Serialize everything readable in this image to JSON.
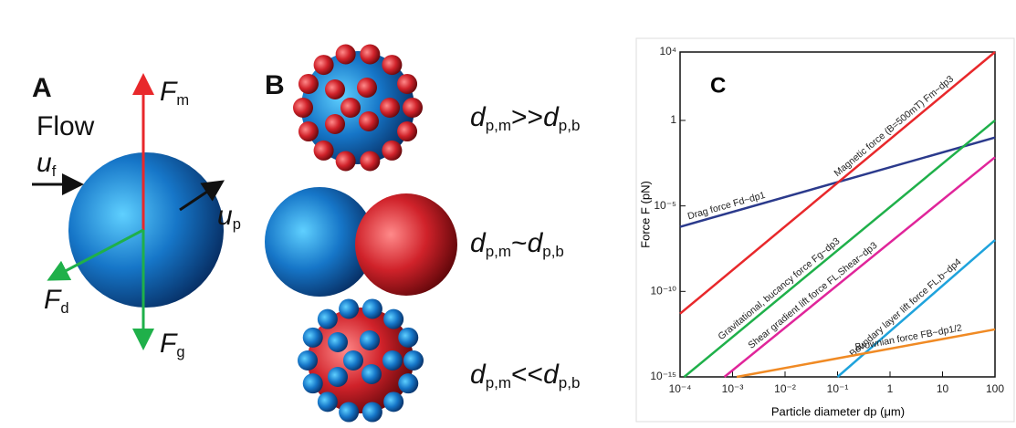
{
  "panel_a": {
    "label": "A",
    "flow": "Flow",
    "u_f": {
      "main": "u",
      "sub": "f"
    },
    "u_p": {
      "main": "u",
      "sub": "p"
    },
    "f_m": {
      "main": "F",
      "sub": "m"
    },
    "f_d": {
      "main": "F",
      "sub": "d"
    },
    "f_g": {
      "main": "F",
      "sub": "g"
    }
  },
  "panel_b": {
    "label": "B",
    "relations": [
      {
        "main": "d",
        "sub": "p,m",
        "relation": ">>",
        "main2": "d",
        "sub2": "p,b"
      },
      {
        "main": "d",
        "sub": "p,m",
        "relation": "~",
        "main2": "d",
        "sub2": "p,b"
      },
      {
        "main": "d",
        "sub": "p,m",
        "relation": "<<",
        "main2": "d",
        "sub2": "p,b"
      }
    ]
  },
  "chart_data": {
    "type": "line",
    "panel_label": "C",
    "x_label": "Particle diameter dp (μm)",
    "y_label": "Force F (pN)",
    "xscale": "log",
    "yscale": "log",
    "xlim": [
      0.0001,
      100
    ],
    "ylim": [
      1e-15,
      10000
    ],
    "xticks": [
      {
        "value": 0.0001,
        "label": "10⁻⁴"
      },
      {
        "value": 0.001,
        "label": "10⁻³"
      },
      {
        "value": 0.01,
        "label": "10⁻²"
      },
      {
        "value": 0.1,
        "label": "10⁻¹"
      },
      1,
      10,
      100
    ],
    "yticks": [
      {
        "value": 1e-15,
        "label": "10⁻¹⁵"
      },
      {
        "value": 1e-10,
        "label": "10⁻¹⁰"
      },
      {
        "value": 1e-05,
        "label": "10⁻⁵"
      },
      1,
      {
        "value": 10000,
        "label": "10⁴"
      }
    ],
    "series": [
      {
        "name": "Drag force Fd~dp1",
        "color": "#2b3a8c",
        "x": [
          0.0001,
          100
        ],
        "values": [
          6e-07,
          0.1
        ]
      },
      {
        "name": "Magnetic force (B=500mT) Fm~dp3",
        "color": "#e8282b",
        "x": [
          0.0001,
          100
        ],
        "values": [
          5e-12,
          10000
        ]
      },
      {
        "name": "Gravitational, bucancy force Fg~dp3",
        "color": "#1fb04a",
        "x": [
          0.00012,
          100
        ],
        "values": [
          1e-15,
          1
        ]
      },
      {
        "name": "Shear gradient lift force FL,Shear~dp3",
        "color": "#e0259a",
        "x": [
          0.0007,
          100
        ],
        "values": [
          1e-15,
          0.007
        ]
      },
      {
        "name": "Boundary layer lift force FL,b~dp4",
        "color": "#1fa3dc",
        "x": [
          0.1,
          100
        ],
        "values": [
          1e-15,
          1e-07
        ]
      },
      {
        "name": "Brownian force FB~dp1/2",
        "color": "#f08a24",
        "x": [
          0.0012,
          100
        ],
        "values": [
          1e-15,
          6e-13
        ]
      }
    ]
  }
}
